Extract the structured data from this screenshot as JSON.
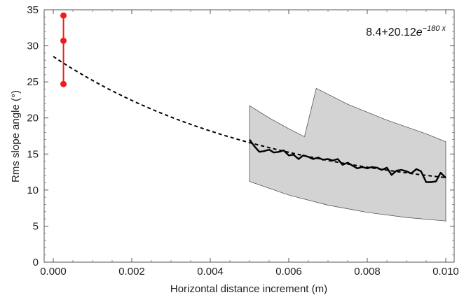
{
  "chart_data": {
    "type": "line",
    "xlabel": "Horizontal distance increment (m)",
    "ylabel": "Rms slope angle (°)",
    "xlim": [
      0.0,
      0.01
    ],
    "ylim": [
      0,
      35
    ],
    "x_ticks": [
      "0.000",
      "0.002",
      "0.004",
      "0.006",
      "0.008",
      "0.010"
    ],
    "y_ticks": [
      "0",
      "5",
      "10",
      "15",
      "20",
      "25",
      "30",
      "35"
    ],
    "grid": false,
    "annotation": {
      "base": "8.4+20.12",
      "e": "e",
      "exponent": "−180 x"
    },
    "fit": {
      "a": 8.4,
      "b": 20.12,
      "k": -180,
      "x_range": [
        0.0,
        0.01
      ]
    },
    "red_points": {
      "x": [
        0.00026,
        0.00026,
        0.00026
      ],
      "y": [
        34.2,
        30.7,
        24.7
      ],
      "color": "#ee1c1c"
    },
    "band": {
      "color": "#d3d3d3",
      "upper": {
        "x": [
          0.005,
          0.0055,
          0.006,
          0.0064,
          0.0067,
          0.0075,
          0.0085,
          0.0095,
          0.01
        ],
        "y": [
          21.7,
          20.0,
          18.5,
          17.4,
          24.1,
          21.9,
          19.7,
          17.8,
          16.7
        ]
      },
      "lower": {
        "x": [
          0.005,
          0.006,
          0.007,
          0.008,
          0.009,
          0.01
        ],
        "y": [
          11.2,
          9.3,
          7.9,
          6.9,
          6.2,
          5.7
        ]
      }
    },
    "data_line": {
      "color": "#000000",
      "x": [
        0.005,
        0.00512,
        0.00525,
        0.00537,
        0.0055,
        0.00562,
        0.00575,
        0.00587,
        0.006,
        0.00612,
        0.00625,
        0.00637,
        0.0065,
        0.00662,
        0.00675,
        0.00687,
        0.007,
        0.00712,
        0.00725,
        0.00737,
        0.0075,
        0.00762,
        0.00775,
        0.00787,
        0.008,
        0.00812,
        0.00825,
        0.00837,
        0.0085,
        0.00862,
        0.00875,
        0.00887,
        0.009,
        0.00912,
        0.00925,
        0.00937,
        0.0095,
        0.00962,
        0.00975,
        0.00987,
        0.01
      ],
      "y": [
        17.0,
        16.1,
        15.3,
        15.4,
        15.6,
        15.2,
        15.3,
        15.5,
        14.8,
        14.9,
        14.3,
        14.8,
        14.6,
        14.3,
        14.5,
        14.2,
        14.3,
        14.1,
        14.3,
        13.5,
        13.8,
        13.4,
        13.0,
        13.2,
        13.0,
        13.2,
        13.1,
        12.8,
        13.1,
        12.1,
        12.7,
        12.8,
        12.6,
        12.3,
        12.9,
        12.6,
        11.1,
        11.1,
        11.2,
        12.4,
        11.7
      ]
    }
  }
}
